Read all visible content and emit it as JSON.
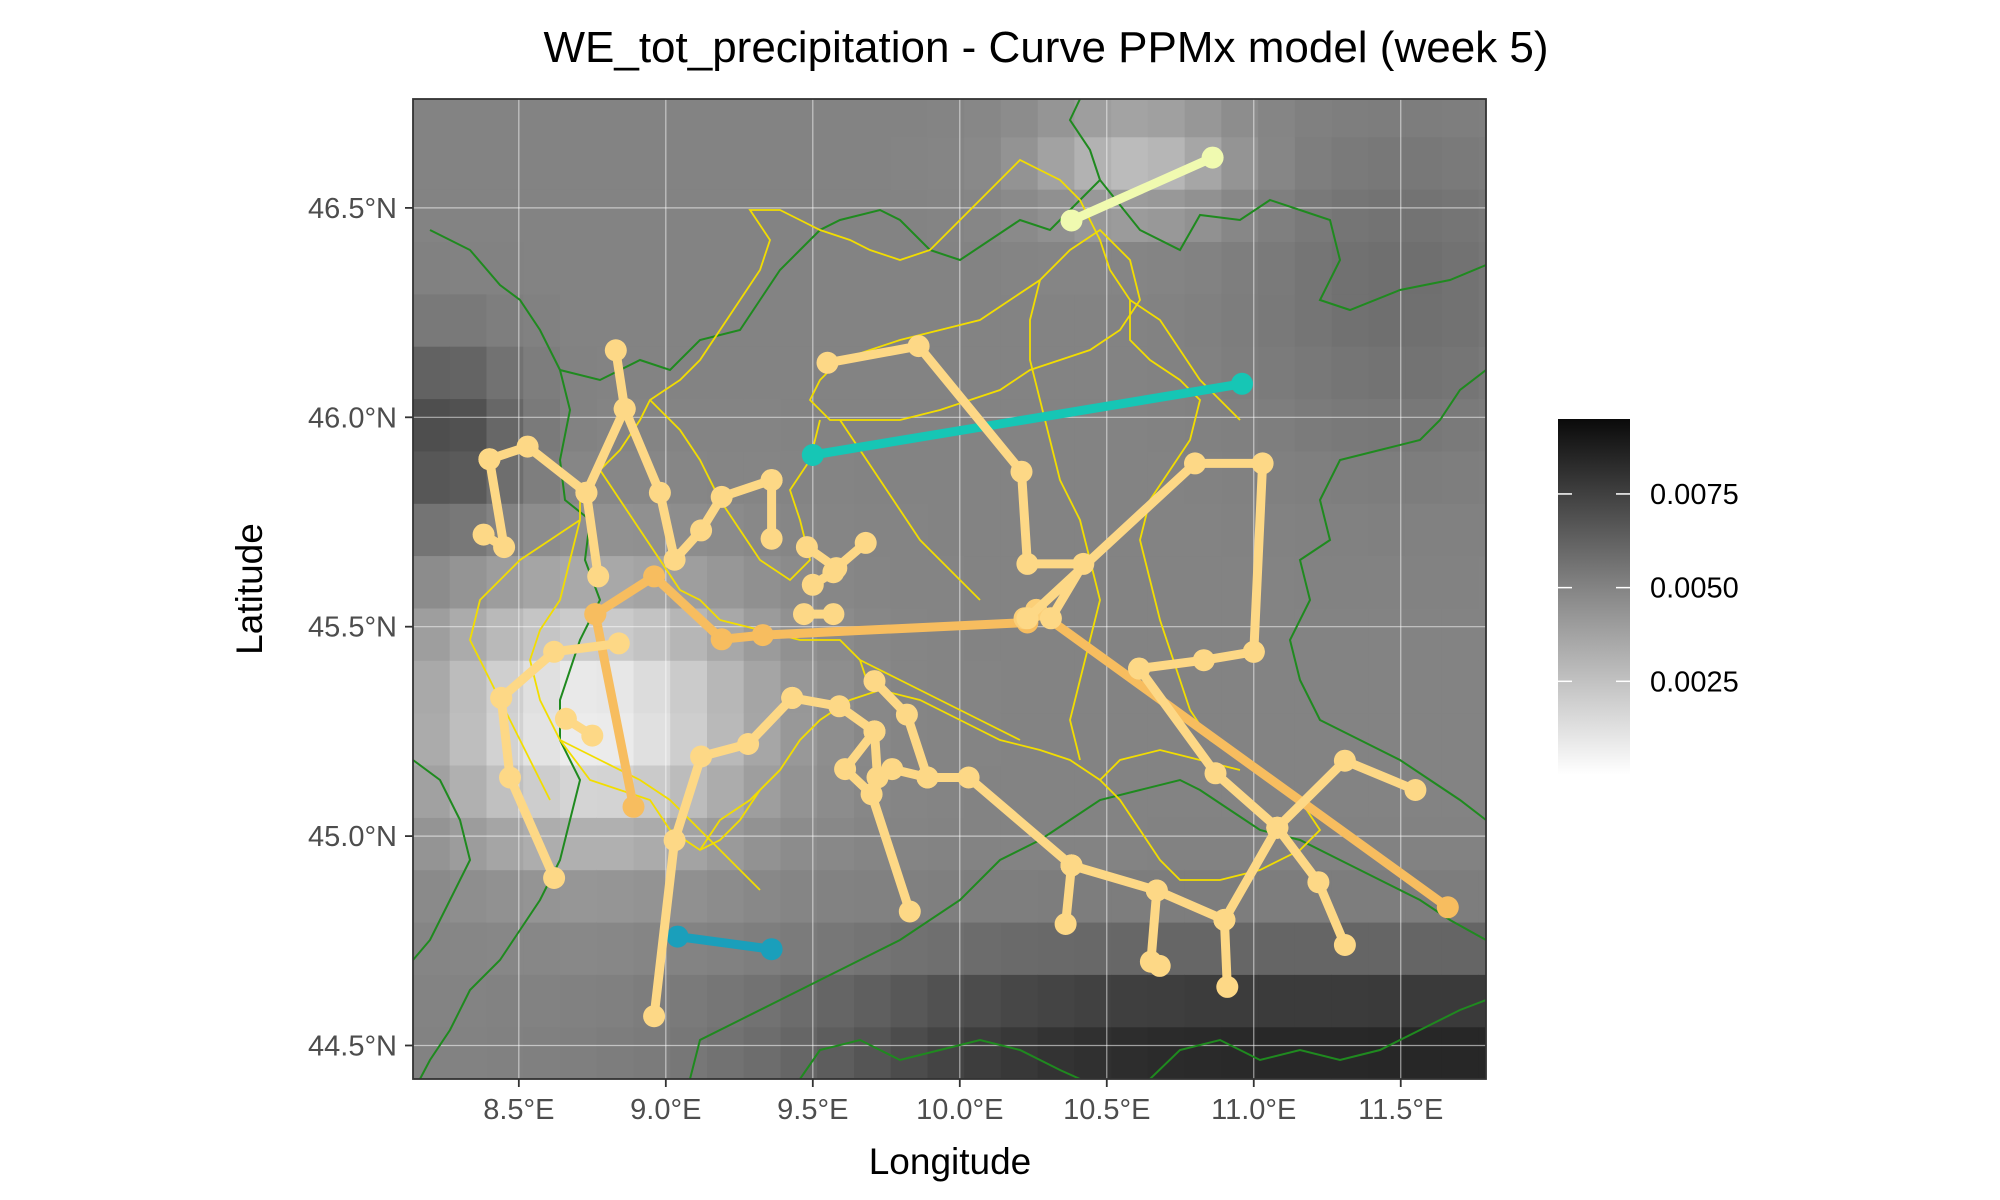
{
  "chart_data": {
    "type": "map",
    "title": "WE_tot_precipitation - Curve PPMx model (week 5)",
    "xlabel": "Longitude",
    "ylabel": "Latitude",
    "xlim": [
      8.14,
      11.79
    ],
    "ylim": [
      44.42,
      46.76
    ],
    "x_ticks": [
      {
        "value": 8.5,
        "label": "8.5°E"
      },
      {
        "value": 9.0,
        "label": "9.0°E"
      },
      {
        "value": 9.5,
        "label": "9.5°E"
      },
      {
        "value": 10.0,
        "label": "10.0°E"
      },
      {
        "value": 10.5,
        "label": "10.5°E"
      },
      {
        "value": 11.0,
        "label": "11.0°E"
      },
      {
        "value": 11.5,
        "label": "11.5°E"
      }
    ],
    "y_ticks": [
      {
        "value": 44.5,
        "label": "44.5°N"
      },
      {
        "value": 45.0,
        "label": "45.0°N"
      },
      {
        "value": 45.5,
        "label": "45.5°N"
      },
      {
        "value": 46.0,
        "label": "46.0°N"
      },
      {
        "value": 46.5,
        "label": "46.5°N"
      }
    ],
    "grid": true,
    "background_raster": {
      "grid_step": 0.125,
      "color_low": "#ffffff",
      "color_high": "#0a0a0a",
      "value_range": [
        0,
        0.0095
      ]
    },
    "legend": {
      "placement": "right",
      "type": "colorbar",
      "ticks": [
        {
          "value": 0.0025,
          "label": "0.0025"
        },
        {
          "value": 0.005,
          "label": "0.0050"
        },
        {
          "value": 0.0075,
          "label": "0.0075"
        }
      ]
    },
    "boundary_colors": {
      "national": "#1f8a1f",
      "province": "#f2dd00"
    },
    "series": [
      {
        "color": "#16c6b5",
        "points": [
          [
            9.5,
            45.91
          ],
          [
            10.96,
            46.08
          ]
        ]
      },
      {
        "color": "#1a9fbb",
        "points": [
          [
            9.04,
            44.76
          ],
          [
            9.36,
            44.73
          ]
        ]
      },
      {
        "color": "#f0fab0",
        "points": [
          [
            10.38,
            46.47
          ],
          [
            10.86,
            46.62
          ]
        ]
      },
      {
        "color": "#f7bd5f",
        "points": [
          [
            8.76,
            45.53
          ],
          [
            8.96,
            45.62
          ],
          [
            9.19,
            45.47
          ],
          [
            9.33,
            45.48
          ],
          [
            10.23,
            45.51
          ],
          [
            10.26,
            45.54
          ],
          [
            11.66,
            44.83
          ]
        ]
      },
      {
        "color": "#f7bd5f",
        "points": [
          [
            8.76,
            45.53
          ],
          [
            8.89,
            45.07
          ]
        ]
      },
      {
        "color": "#fbcf78",
        "points": [
          [
            10.26,
            45.54
          ],
          [
            10.22,
            45.52
          ]
        ]
      },
      {
        "color": "#fdd886",
        "points": [
          [
            8.4,
            45.9
          ],
          [
            8.53,
            45.93
          ],
          [
            8.73,
            45.82
          ],
          [
            8.86,
            46.02
          ],
          [
            8.98,
            45.82
          ],
          [
            9.03,
            45.66
          ],
          [
            9.12,
            45.73
          ],
          [
            9.19,
            45.81
          ],
          [
            9.36,
            45.85
          ]
        ]
      },
      {
        "color": "#fdd886",
        "points": [
          [
            8.86,
            46.02
          ],
          [
            8.83,
            46.16
          ]
        ]
      },
      {
        "color": "#fdd886",
        "points": [
          [
            8.73,
            45.82
          ],
          [
            8.77,
            45.62
          ]
        ]
      },
      {
        "color": "#fdd886",
        "points": [
          [
            8.4,
            45.9
          ],
          [
            8.45,
            45.69
          ],
          [
            8.38,
            45.72
          ]
        ]
      },
      {
        "color": "#fdd886",
        "points": [
          [
            9.36,
            45.85
          ],
          [
            9.36,
            45.71
          ]
        ]
      },
      {
        "color": "#fdd886",
        "points": [
          [
            9.48,
            45.69
          ],
          [
            9.58,
            45.64
          ],
          [
            9.68,
            45.7
          ]
        ]
      },
      {
        "color": "#fdd886",
        "points": [
          [
            9.5,
            45.6
          ],
          [
            9.57,
            45.63
          ]
        ]
      },
      {
        "color": "#fdd886",
        "points": [
          [
            9.47,
            45.53
          ],
          [
            9.57,
            45.53
          ]
        ]
      },
      {
        "color": "#fdd886",
        "points": [
          [
            9.55,
            46.13
          ],
          [
            9.86,
            46.17
          ],
          [
            10.21,
            45.87
          ],
          [
            10.23,
            45.65
          ],
          [
            10.42,
            45.65
          ],
          [
            10.31,
            45.52
          ]
        ]
      },
      {
        "color": "#fdd886",
        "points": [
          [
            8.44,
            45.33
          ],
          [
            8.62,
            45.44
          ],
          [
            8.84,
            45.46
          ]
        ]
      },
      {
        "color": "#fdd886",
        "points": [
          [
            8.44,
            45.33
          ],
          [
            8.47,
            45.14
          ],
          [
            8.62,
            44.9
          ]
        ]
      },
      {
        "color": "#fdd886",
        "points": [
          [
            8.66,
            45.28
          ],
          [
            8.75,
            45.24
          ]
        ]
      },
      {
        "color": "#fdd886",
        "points": [
          [
            9.43,
            45.33
          ],
          [
            9.59,
            45.31
          ],
          [
            9.71,
            45.25
          ],
          [
            9.72,
            45.14
          ],
          [
            9.77,
            45.16
          ],
          [
            9.89,
            45.14
          ],
          [
            10.03,
            45.14
          ],
          [
            10.38,
            44.93
          ]
        ]
      },
      {
        "color": "#fdd886",
        "points": [
          [
            9.43,
            45.33
          ],
          [
            9.28,
            45.22
          ],
          [
            9.12,
            45.19
          ],
          [
            9.03,
            44.99
          ],
          [
            8.96,
            44.57
          ]
        ]
      },
      {
        "color": "#fdd886",
        "points": [
          [
            9.71,
            45.25
          ],
          [
            9.61,
            45.16
          ],
          [
            9.7,
            45.1
          ],
          [
            9.83,
            44.82
          ]
        ]
      },
      {
        "color": "#fdd886",
        "points": [
          [
            9.71,
            45.37
          ],
          [
            9.82,
            45.29
          ],
          [
            9.89,
            45.14
          ]
        ]
      },
      {
        "color": "#fdd886",
        "points": [
          [
            10.38,
            44.93
          ],
          [
            10.36,
            44.79
          ]
        ]
      },
      {
        "color": "#fdd886",
        "points": [
          [
            10.38,
            44.93
          ],
          [
            10.67,
            44.87
          ],
          [
            10.65,
            44.7
          ],
          [
            10.68,
            44.69
          ]
        ]
      },
      {
        "color": "#fdd886",
        "points": [
          [
            10.67,
            44.87
          ],
          [
            10.9,
            44.8
          ],
          [
            10.91,
            44.64
          ]
        ]
      },
      {
        "color": "#fdd886",
        "points": [
          [
            10.9,
            44.8
          ],
          [
            11.08,
            45.02
          ],
          [
            11.31,
            45.18
          ],
          [
            11.55,
            45.11
          ]
        ]
      },
      {
        "color": "#fdd886",
        "points": [
          [
            11.08,
            45.02
          ],
          [
            11.22,
            44.89
          ],
          [
            11.31,
            44.74
          ]
        ]
      },
      {
        "color": "#fdd886",
        "points": [
          [
            10.61,
            45.4
          ],
          [
            10.87,
            45.15
          ],
          [
            11.08,
            45.02
          ]
        ]
      },
      {
        "color": "#fdd886",
        "points": [
          [
            10.61,
            45.4
          ],
          [
            10.83,
            45.42
          ],
          [
            11.0,
            45.44
          ]
        ]
      },
      {
        "color": "#fdd886",
        "points": [
          [
            10.23,
            45.52
          ],
          [
            10.8,
            45.89
          ],
          [
            11.03,
            45.89
          ],
          [
            11.0,
            45.44
          ]
        ]
      }
    ]
  }
}
